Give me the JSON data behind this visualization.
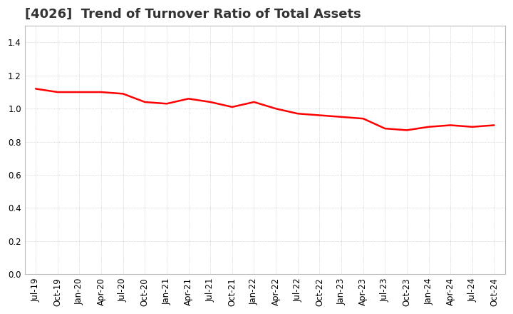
{
  "title": "[4026]  Trend of Turnover Ratio of Total Assets",
  "line_color": "#FF0000",
  "background_color": "#FFFFFF",
  "plot_bg_color": "#FFFFFF",
  "grid_color": "#AAAAAA",
  "ylim": [
    0.0,
    1.5
  ],
  "yticks": [
    0.0,
    0.2,
    0.4,
    0.6,
    0.8,
    1.0,
    1.2,
    1.4
  ],
  "x_labels": [
    "Jul-19",
    "Oct-19",
    "Jan-20",
    "Apr-20",
    "Jul-20",
    "Oct-20",
    "Jan-21",
    "Apr-21",
    "Jul-21",
    "Oct-21",
    "Jan-22",
    "Apr-22",
    "Jul-22",
    "Oct-22",
    "Jan-23",
    "Apr-23",
    "Jul-23",
    "Oct-23",
    "Jan-24",
    "Apr-24",
    "Jul-24",
    "Oct-24"
  ],
  "values": [
    1.12,
    1.1,
    1.1,
    1.1,
    1.09,
    1.04,
    1.03,
    1.06,
    1.04,
    1.01,
    1.04,
    1.0,
    0.97,
    0.96,
    0.95,
    0.94,
    0.88,
    0.87,
    0.89,
    0.9,
    0.89,
    0.9
  ],
  "title_color": "#333333",
  "title_fontsize": 13,
  "tick_fontsize": 8.5,
  "line_width": 1.8
}
